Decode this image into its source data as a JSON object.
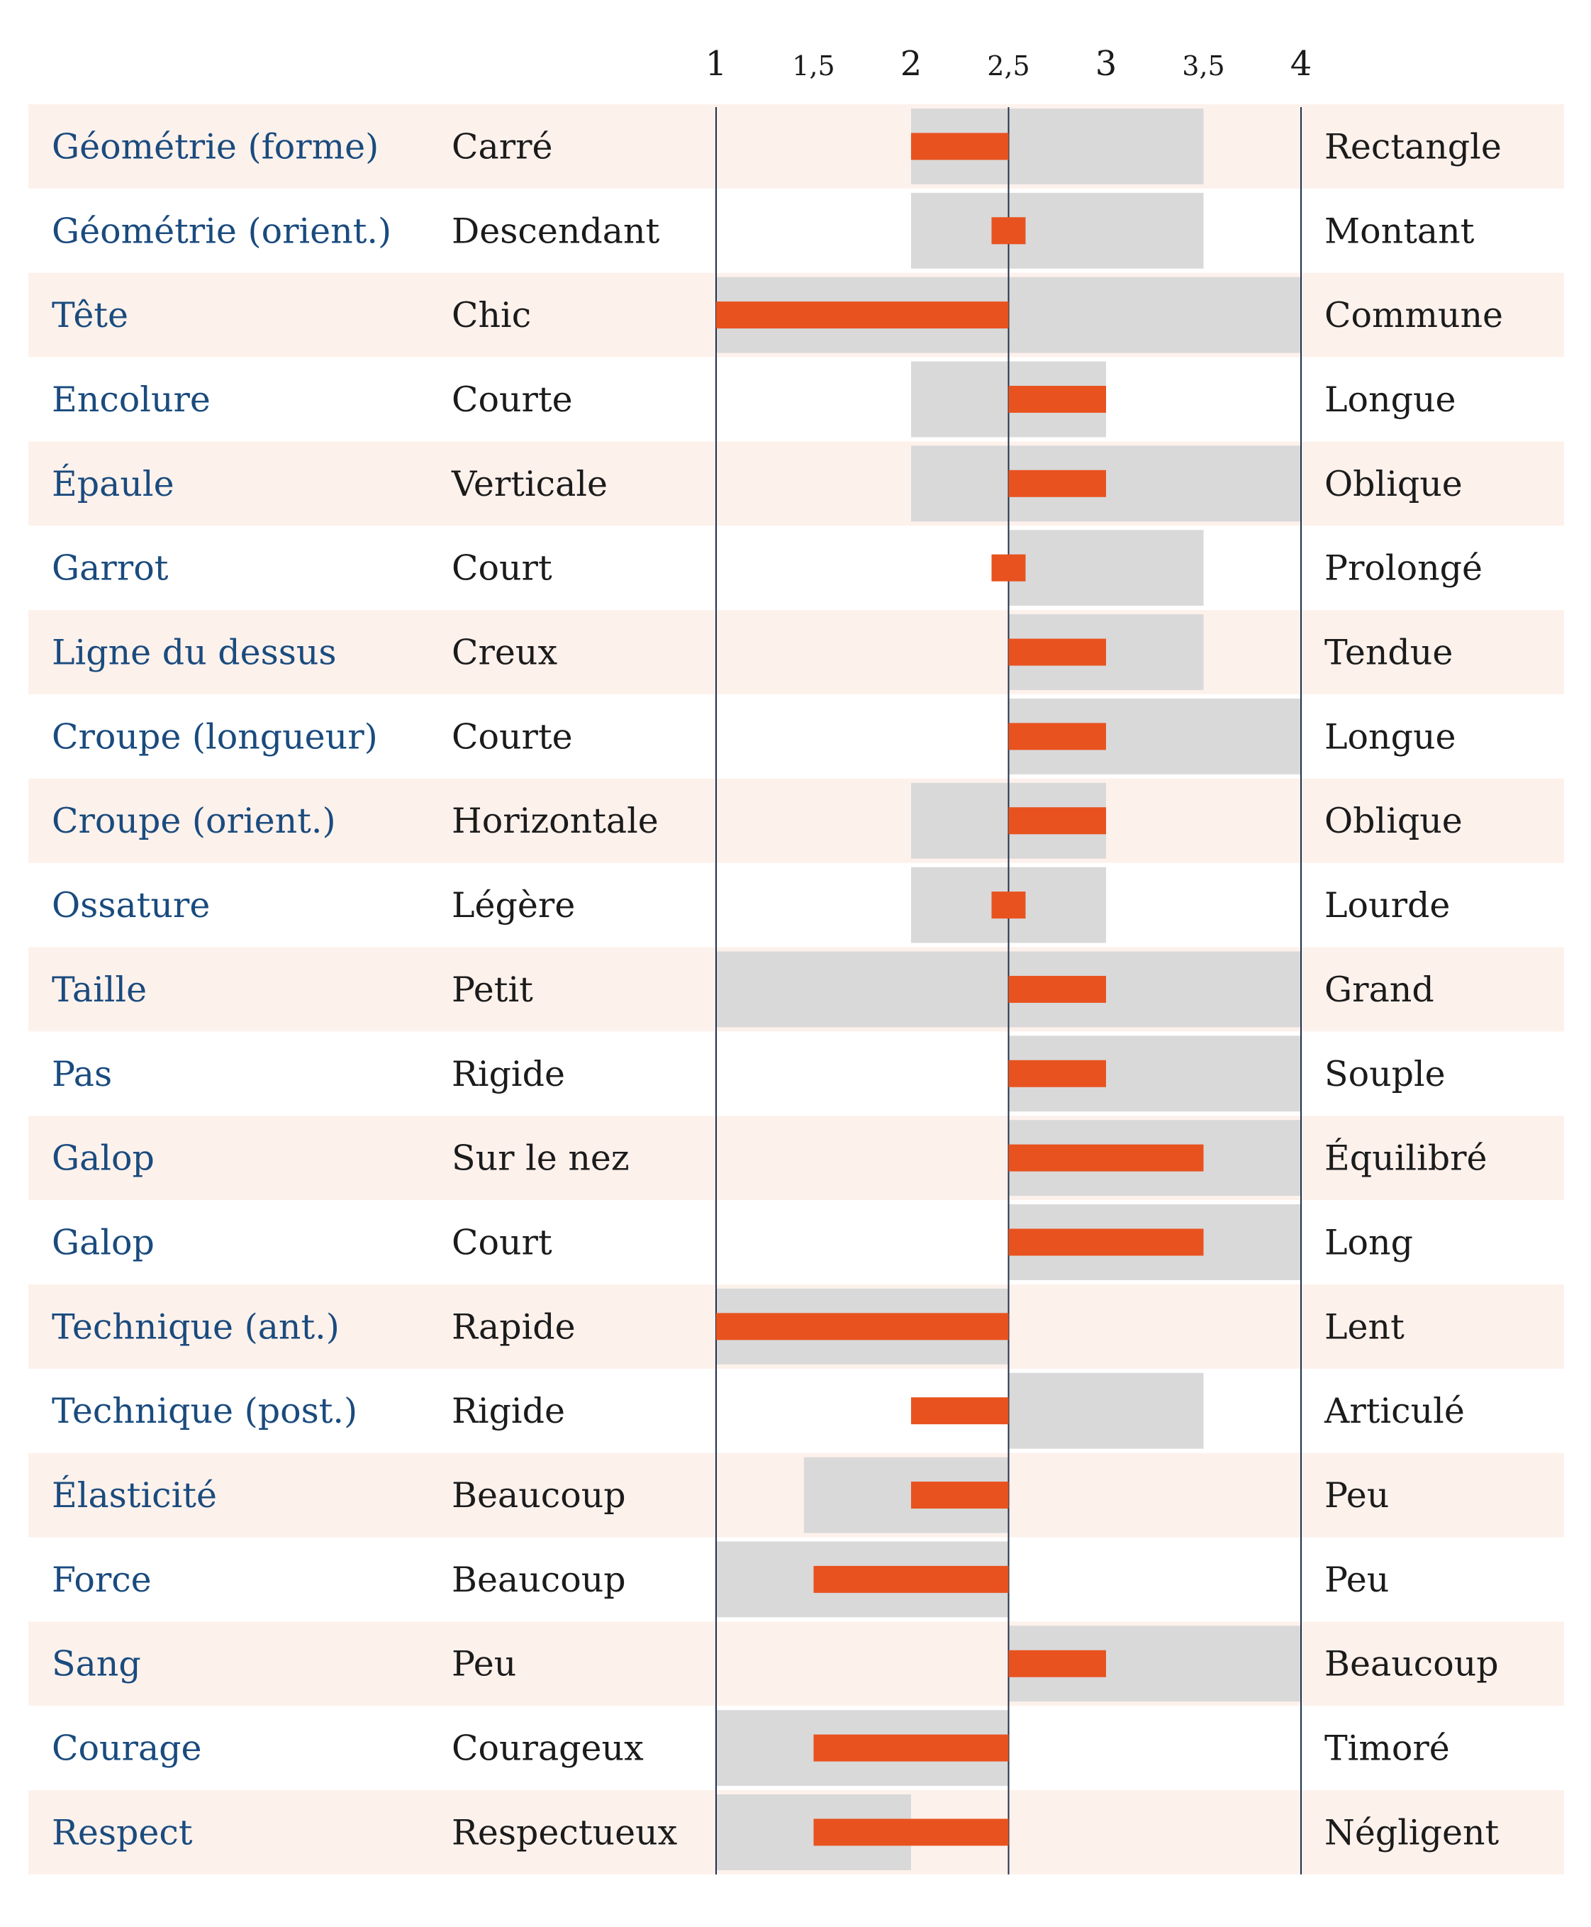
{
  "chart_data": {
    "type": "bar",
    "title": "",
    "xlabel": "",
    "ylabel": "",
    "xlim": [
      1,
      4
    ],
    "ticks": [
      {
        "value": 1,
        "label": "1"
      },
      {
        "value": 1.5,
        "label": "1,5"
      },
      {
        "value": 2,
        "label": "2"
      },
      {
        "value": 2.5,
        "label": "2,5"
      },
      {
        "value": 3,
        "label": "3"
      },
      {
        "value": 3.5,
        "label": "3,5"
      },
      {
        "value": 4,
        "label": "4"
      }
    ],
    "center": 2.5,
    "grid_lines": [
      1,
      2.5,
      4
    ],
    "colors": {
      "trait_label": "#1a4b7e",
      "text": "#1b1b1b",
      "bar": "#e8521f",
      "range": "#d9d9d9",
      "row_stripe": "#fdf1ec",
      "axis_line": "#1f2f4a"
    },
    "legend": "none",
    "rows": [
      {
        "trait": "Géométrie (forme)",
        "low": "Carré",
        "high": "Rectangle",
        "range": [
          2,
          3.5
        ],
        "value": 2
      },
      {
        "trait": "Géométrie (orient.)",
        "low": "Descendant",
        "high": "Montant",
        "range": [
          2,
          3.5
        ],
        "value": 2.5
      },
      {
        "trait": "Tête",
        "low": "Chic",
        "high": "Commune",
        "range": [
          1,
          4
        ],
        "value": 1
      },
      {
        "trait": "Encolure",
        "low": "Courte",
        "high": "Longue",
        "range": [
          2,
          3
        ],
        "value": 3
      },
      {
        "trait": "Épaule",
        "low": "Verticale",
        "high": "Oblique",
        "range": [
          2,
          4
        ],
        "value": 3
      },
      {
        "trait": "Garrot",
        "low": "Court",
        "high": "Prolongé",
        "range": [
          2.5,
          3.5
        ],
        "value": 2.5
      },
      {
        "trait": "Ligne du dessus",
        "low": "Creux",
        "high": "Tendue",
        "range": [
          2.5,
          3.5
        ],
        "value": 3
      },
      {
        "trait": "Croupe (longueur)",
        "low": "Courte",
        "high": "Longue",
        "range": [
          2.5,
          4
        ],
        "value": 3
      },
      {
        "trait": "Croupe (orient.)",
        "low": "Horizontale",
        "high": "Oblique",
        "range": [
          2,
          3
        ],
        "value": 3
      },
      {
        "trait": "Ossature",
        "low": "Légère",
        "high": "Lourde",
        "range": [
          2,
          3
        ],
        "value": 2.5
      },
      {
        "trait": "Taille",
        "low": "Petit",
        "high": "Grand",
        "range": [
          1,
          4
        ],
        "value": 3
      },
      {
        "trait": "Pas",
        "low": "Rigide",
        "high": "Souple",
        "range": [
          2.5,
          4
        ],
        "value": 3
      },
      {
        "trait": "Galop",
        "low": "Sur le nez",
        "high": "Équilibré",
        "range": [
          2.5,
          4
        ],
        "value": 3.5
      },
      {
        "trait": "Galop",
        "low": "Court",
        "high": "Long",
        "range": [
          2.5,
          4
        ],
        "value": 3.5
      },
      {
        "trait": "Technique (ant.)",
        "low": "Rapide",
        "high": "Lent",
        "range": [
          1,
          2.5
        ],
        "value": 1
      },
      {
        "trait": "Technique (post.)",
        "low": "Rigide",
        "high": "Articulé",
        "range": [
          2.5,
          3.5
        ],
        "value": 2
      },
      {
        "trait": "Élasticité",
        "low": "Beaucoup",
        "high": "Peu",
        "range": [
          1.45,
          2.5
        ],
        "value": 2
      },
      {
        "trait": "Force",
        "low": "Beaucoup",
        "high": "Peu",
        "range": [
          1,
          2.5
        ],
        "value": 1.5
      },
      {
        "trait": "Sang",
        "low": "Peu",
        "high": "Beaucoup",
        "range": [
          2.5,
          4
        ],
        "value": 3
      },
      {
        "trait": "Courage",
        "low": "Courageux",
        "high": "Timoré",
        "range": [
          1,
          2.5
        ],
        "value": 1.5
      },
      {
        "trait": "Respect",
        "low": "Respectueux",
        "high": "Négligent",
        "range": [
          1,
          2
        ],
        "value": 1.5
      }
    ]
  }
}
